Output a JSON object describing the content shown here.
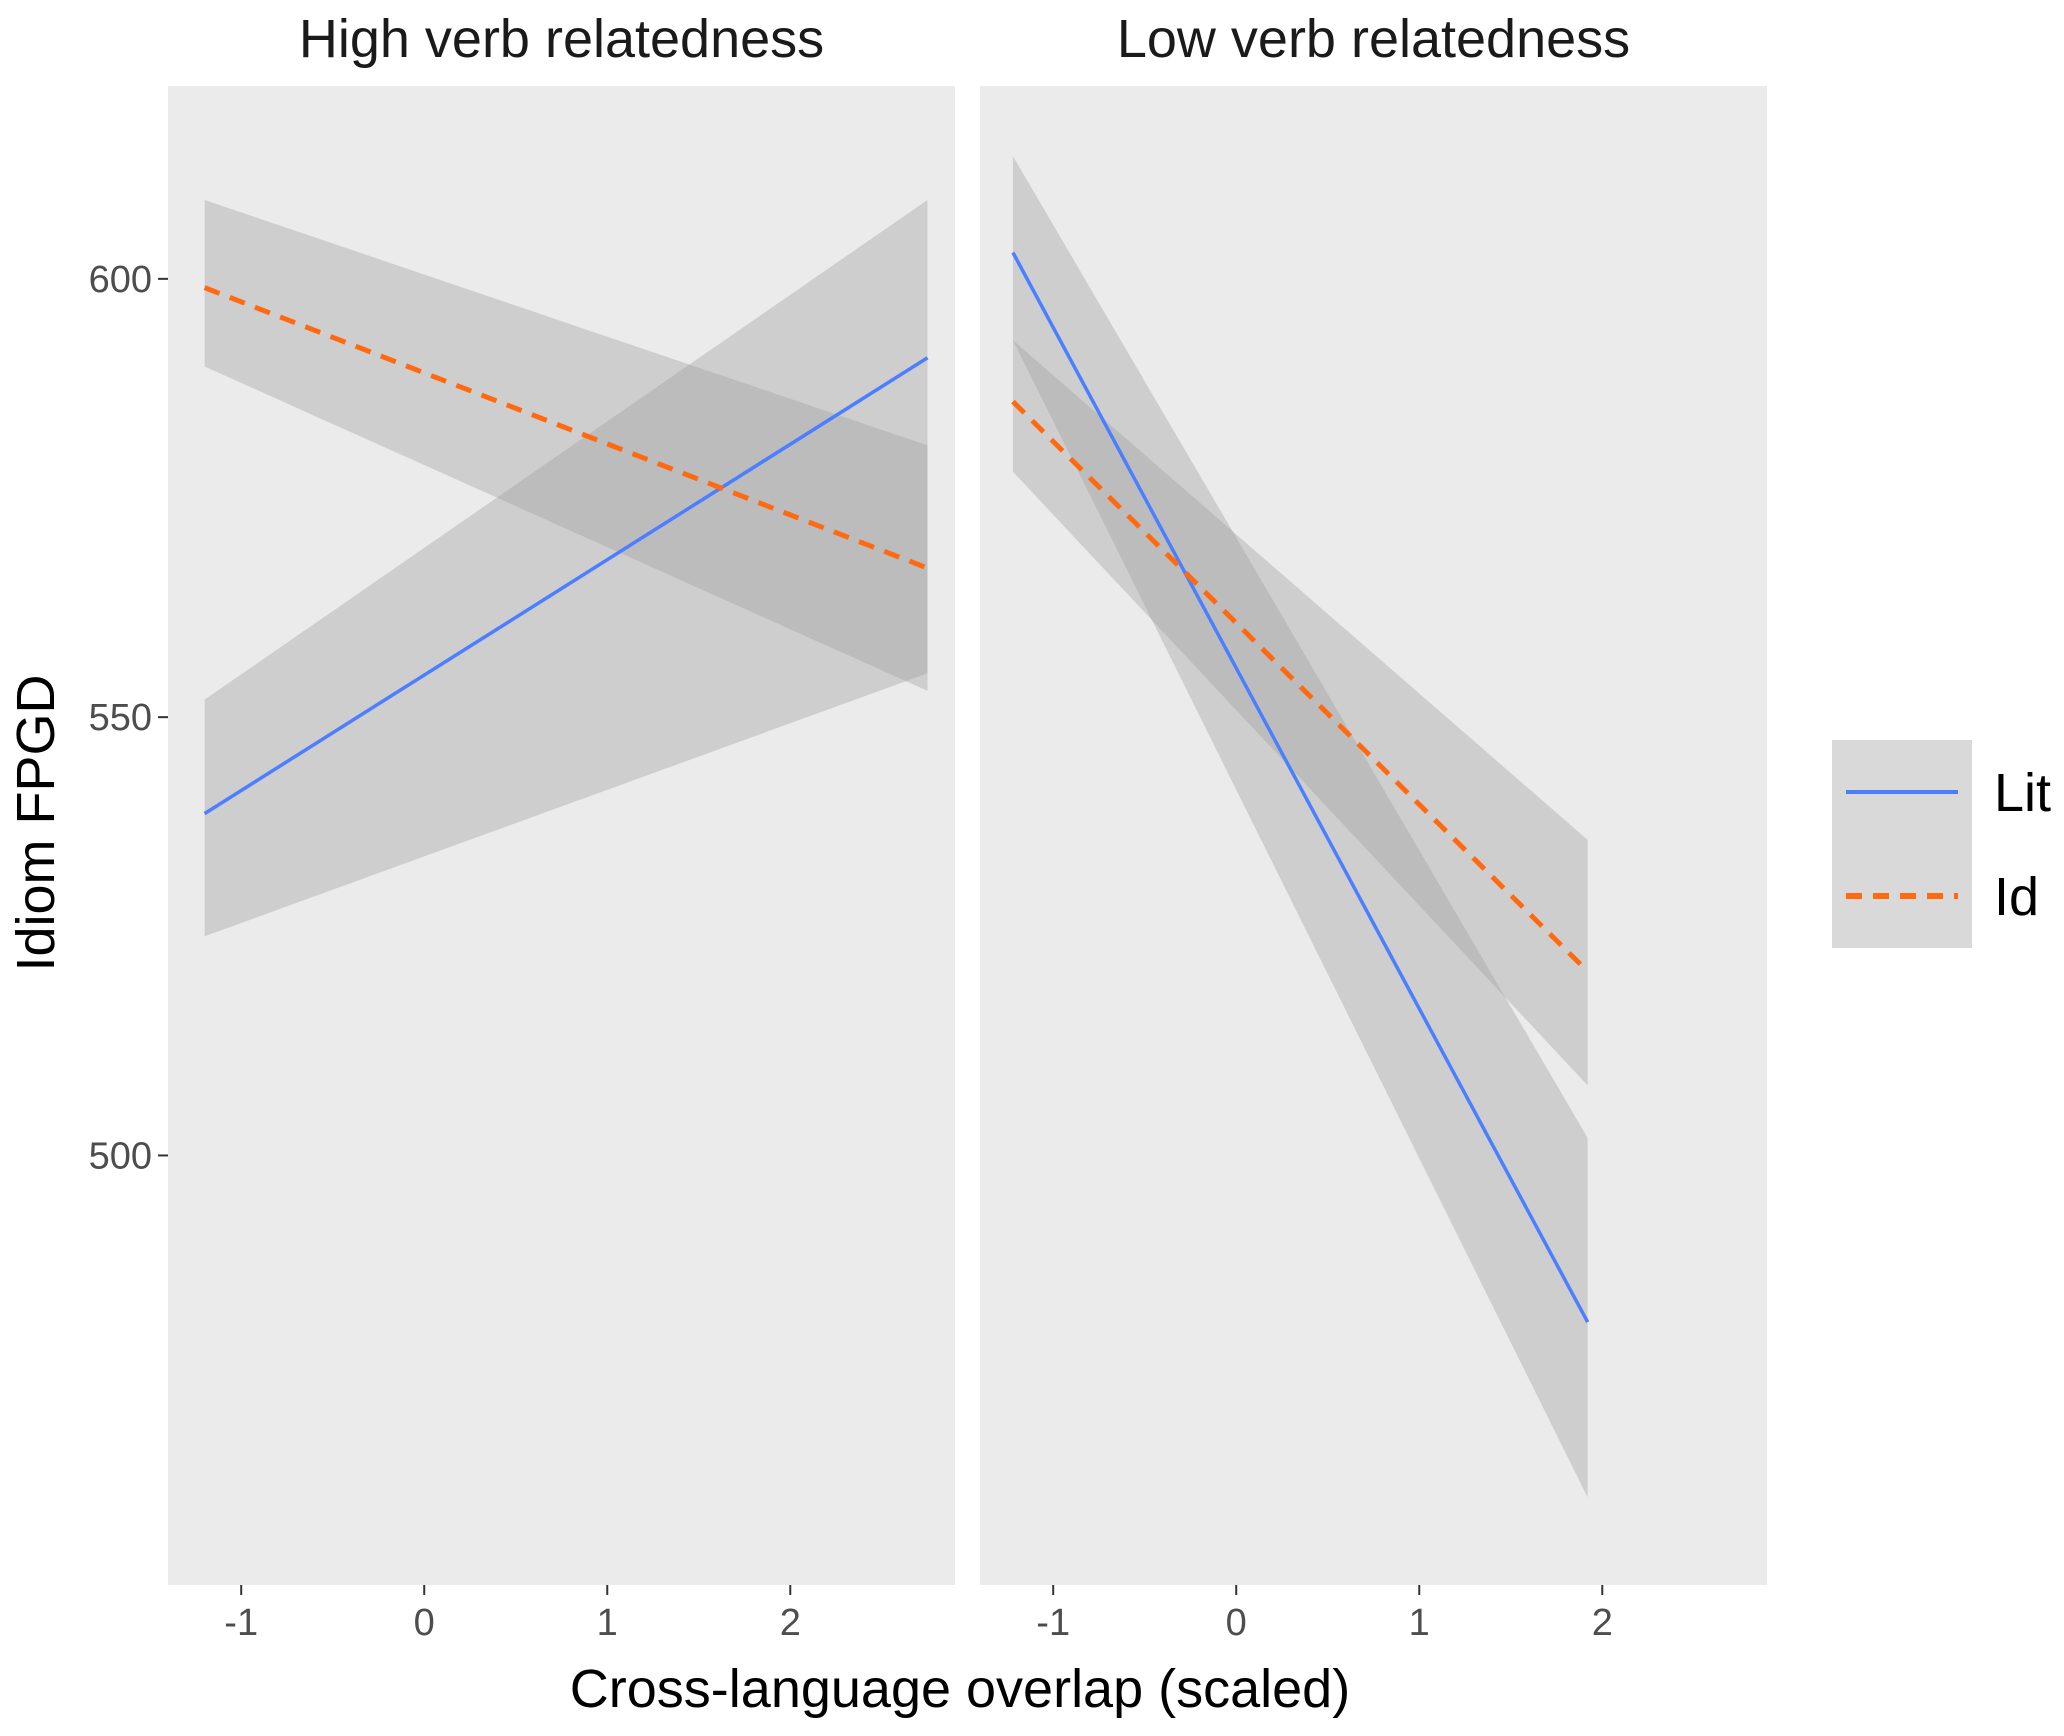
{
  "chart_data": {
    "type": "line",
    "xlabel": "Cross-language overlap (scaled)",
    "ylabel": "Idiom FPGD",
    "xlim": [
      -1.4,
      2.9
    ],
    "ylim": [
      451,
      622
    ],
    "x_ticks": [
      -1,
      0,
      1,
      2
    ],
    "x_tick_labels": [
      "-1",
      "0",
      "1",
      "2"
    ],
    "y_ticks": [
      500,
      550,
      600
    ],
    "y_tick_labels": [
      "500",
      "550",
      "600"
    ],
    "legend": {
      "position": "right",
      "entries": [
        {
          "key": "Lit",
          "label": "Lit",
          "color": "#4c7fff",
          "dash": "solid"
        },
        {
          "key": "Id",
          "label": "Id",
          "color": "#ff6a10",
          "dash": "dashed"
        }
      ]
    },
    "colors": {
      "panel_background": "#ebebeb",
      "ribbon": "#a0a0a0",
      "legend_key_background": "#d9d9d9"
    },
    "panels": [
      {
        "title": "High verb relatedness",
        "x_range": [
          -1.2,
          2.75
        ],
        "series": [
          {
            "name": "Lit",
            "x": [
              -1.2,
              2.75
            ],
            "y": [
              539,
              591
            ],
            "ci_lower": [
              525,
              555
            ],
            "ci_upper": [
              552,
              609
            ]
          },
          {
            "name": "Id",
            "x": [
              -1.2,
              2.75
            ],
            "y": [
              599,
              567
            ],
            "ci_lower": [
              590,
              553
            ],
            "ci_upper": [
              609,
              581
            ]
          }
        ]
      },
      {
        "title": "Low verb relatedness",
        "x_range": [
          -1.22,
          1.92
        ],
        "series": [
          {
            "name": "Lit",
            "x": [
              -1.22,
              1.92
            ],
            "y": [
              603,
              481
            ],
            "ci_lower": [
              593,
              461
            ],
            "ci_upper": [
              614,
              502
            ]
          },
          {
            "name": "Id",
            "x": [
              -1.22,
              1.92
            ],
            "y": [
              586,
              521
            ],
            "ci_lower": [
              578,
              508
            ],
            "ci_upper": [
              593,
              536
            ]
          }
        ]
      }
    ]
  }
}
